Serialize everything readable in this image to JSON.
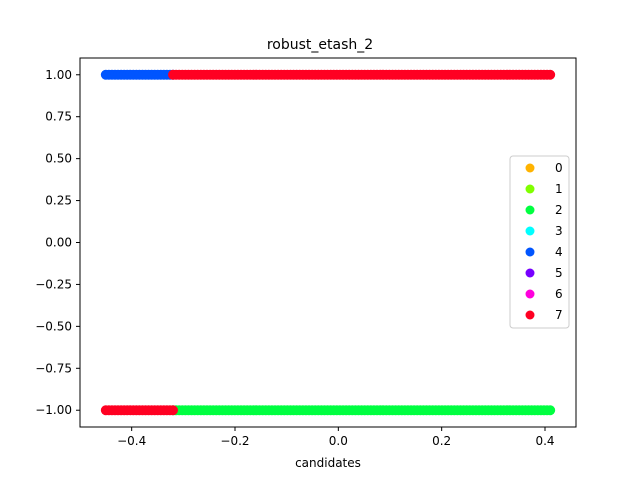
{
  "chart_data": {
    "type": "scatter",
    "title": "robust_etash_2",
    "xlabel": "candidates",
    "ylabel": "",
    "xlim": [
      -0.5,
      0.46
    ],
    "ylim": [
      -1.1,
      1.1
    ],
    "x_ticks": [
      -0.4,
      -0.2,
      0.0,
      0.2,
      0.4
    ],
    "x_tick_labels": [
      "−0.4",
      "−0.2",
      "0.0",
      "0.2",
      "0.4"
    ],
    "y_ticks": [
      -1.0,
      -0.75,
      -0.5,
      -0.25,
      0.0,
      0.25,
      0.5,
      0.75,
      1.0
    ],
    "y_tick_labels": [
      "−1.00",
      "−0.75",
      "−0.50",
      "−0.25",
      "0.00",
      "0.25",
      "0.50",
      "0.75",
      "1.00"
    ],
    "legend_position": "center-right",
    "grid": false,
    "series": [
      {
        "name": "0",
        "color": "#ffb300",
        "segments": []
      },
      {
        "name": "1",
        "color": "#80ff00",
        "segments": []
      },
      {
        "name": "2",
        "color": "#00ff40",
        "segments": [
          {
            "y": -1.0,
            "x_start": -0.32,
            "x_end": 0.41
          }
        ]
      },
      {
        "name": "3",
        "color": "#00ffff",
        "segments": []
      },
      {
        "name": "4",
        "color": "#0055ff",
        "segments": [
          {
            "y": 1.0,
            "x_start": -0.45,
            "x_end": -0.32
          }
        ]
      },
      {
        "name": "5",
        "color": "#7700ff",
        "segments": []
      },
      {
        "name": "6",
        "color": "#ff00dd",
        "segments": []
      },
      {
        "name": "7",
        "color": "#ff0022",
        "segments": [
          {
            "y": 1.0,
            "x_start": -0.32,
            "x_end": 0.41
          },
          {
            "y": -1.0,
            "x_start": -0.45,
            "x_end": -0.32
          }
        ]
      }
    ]
  }
}
